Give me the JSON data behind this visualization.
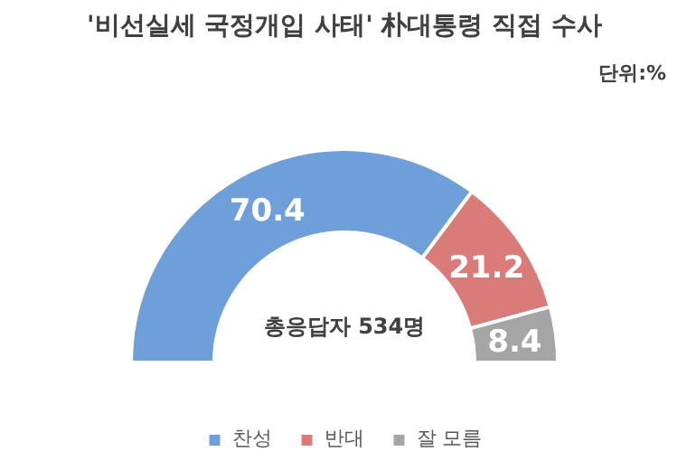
{
  "chart_data": {
    "type": "donut",
    "title": "'비선실세 국정개입 사태' 朴대통령 직접 수사",
    "categories": [
      "찬성",
      "반대",
      "잘 모름"
    ],
    "values": [
      70.4,
      21.2,
      8.4
    ],
    "colors": [
      "#6f9fd8",
      "#d97b78",
      "#a5a5a5"
    ],
    "data_labels": true,
    "legend": "bottom",
    "annotations": [
      "단위:%",
      "총응답자 534명"
    ]
  }
}
